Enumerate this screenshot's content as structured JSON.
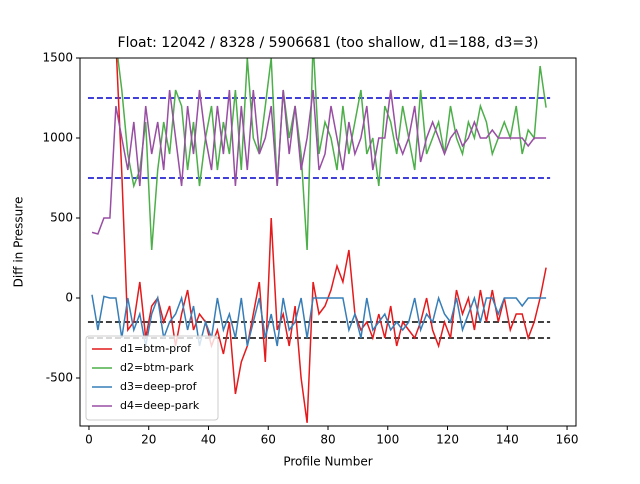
{
  "chart_data": {
    "type": "line",
    "title": "Float: 12042 / 8328 / 5906681 (too shallow, d1=188, d3=3)",
    "xlabel": "Profile Number",
    "ylabel": "Diff in Pressure",
    "x": [
      1,
      3,
      5,
      7,
      9,
      11,
      13,
      15,
      17,
      19,
      21,
      23,
      25,
      27,
      29,
      31,
      33,
      35,
      37,
      39,
      41,
      43,
      45,
      47,
      49,
      51,
      53,
      55,
      57,
      59,
      61,
      63,
      65,
      67,
      69,
      71,
      73,
      75,
      77,
      79,
      81,
      83,
      85,
      87,
      89,
      91,
      93,
      95,
      97,
      99,
      101,
      103,
      105,
      107,
      109,
      111,
      113,
      115,
      117,
      119,
      121,
      123,
      125,
      127,
      129,
      131,
      133,
      135,
      137,
      139,
      141,
      143,
      145,
      147,
      149,
      151,
      153
    ],
    "series": [
      {
        "name": "d1=btm-prof",
        "color": "#e41a1c",
        "values": [
          null,
          null,
          null,
          null,
          1600,
          780,
          -200,
          -150,
          100,
          -250,
          -50,
          0,
          -150,
          -50,
          -300,
          -100,
          50,
          -200,
          -100,
          -150,
          -300,
          -200,
          -350,
          -150,
          -600,
          -400,
          -300,
          -100,
          100,
          -400,
          500,
          -200,
          -100,
          -300,
          -50,
          -500,
          -780,
          100,
          -100,
          -50,
          50,
          200,
          100,
          300,
          -100,
          -200,
          -150,
          -250,
          -100,
          -250,
          -50,
          -300,
          -150,
          -200,
          -250,
          -150,
          0,
          -200,
          -300,
          -150,
          -250,
          50,
          -100,
          0,
          -200,
          50,
          -150,
          50,
          -150,
          0,
          -200,
          -100,
          -100,
          -250,
          -150,
          0,
          190
        ]
      },
      {
        "name": "d2=btm-park",
        "color": "#4daf4a",
        "values": [
          null,
          null,
          null,
          null,
          1600,
          1300,
          900,
          700,
          800,
          1100,
          300,
          800,
          1100,
          900,
          1300,
          1200,
          800,
          1100,
          700,
          1000,
          1200,
          800,
          1100,
          900,
          1300,
          800,
          1500,
          1000,
          900,
          1200,
          1500,
          700,
          1300,
          1000,
          1200,
          900,
          300,
          1600,
          900,
          1100,
          1000,
          800,
          1200,
          900,
          1100,
          1300,
          900,
          1000,
          700,
          1200,
          1100,
          900,
          1200,
          1000,
          800,
          1300,
          900,
          1000,
          1100,
          900,
          1200,
          1000,
          900,
          1100,
          1000,
          1200,
          1100,
          900,
          1000,
          1100,
          1000,
          1200,
          900,
          1050,
          1000,
          1450,
          1190
        ]
      },
      {
        "name": "d3=deep-prof",
        "color": "#377eb8",
        "values": [
          20,
          -200,
          10,
          0,
          0,
          -250,
          0,
          -200,
          -100,
          -300,
          -100,
          0,
          -250,
          -150,
          -100,
          0,
          -200,
          -50,
          -300,
          -150,
          -250,
          0,
          -200,
          -100,
          -250,
          0,
          -300,
          -150,
          0,
          -250,
          -100,
          -300,
          0,
          -200,
          -150,
          0,
          -250,
          0,
          0,
          0,
          0,
          0,
          0,
          -200,
          -100,
          -250,
          0,
          -200,
          -150,
          -100,
          -200,
          -150,
          -200,
          -150,
          0,
          -200,
          -100,
          -150,
          0,
          -100,
          -150,
          0,
          -200,
          -100,
          0,
          -150,
          0,
          0,
          -100,
          0,
          0,
          0,
          -50,
          0,
          0,
          0,
          0
        ]
      },
      {
        "name": "d4=deep-park",
        "color": "#984ea3",
        "values": [
          410,
          400,
          500,
          500,
          1200,
          1000,
          800,
          1100,
          700,
          1200,
          900,
          1100,
          800,
          1300,
          1000,
          700,
          1200,
          900,
          1300,
          1000,
          800,
          1200,
          900,
          1300,
          700,
          1200,
          800,
          1300,
          900,
          1000,
          1200,
          700,
          1300,
          900,
          1200,
          800,
          1000,
          1300,
          800,
          900,
          1200,
          1000,
          800,
          1100,
          900,
          1000,
          1200,
          800,
          1000,
          1000,
          1300,
          1000,
          900,
          1000,
          1200,
          850,
          1000,
          1100,
          1000,
          900,
          1000,
          1050,
          950,
          1000,
          1100,
          1000,
          1000,
          1050,
          1000,
          1000,
          1000,
          1000,
          1000,
          950,
          1000,
          1000,
          1000
        ]
      }
    ],
    "hlines": [
      {
        "value": 1250,
        "color": "#0000cc"
      },
      {
        "value": 750,
        "color": "#0000cc"
      },
      {
        "value": -150,
        "color": "#000000"
      },
      {
        "value": -250,
        "color": "#000000"
      }
    ],
    "xlim": [
      -3,
      163
    ],
    "xticks": [
      0,
      20,
      40,
      60,
      80,
      100,
      120,
      140,
      160
    ],
    "ylim": [
      -800,
      1500
    ],
    "yticks": [
      -500,
      0,
      500,
      1000,
      1500
    ],
    "legend": "lower left"
  }
}
